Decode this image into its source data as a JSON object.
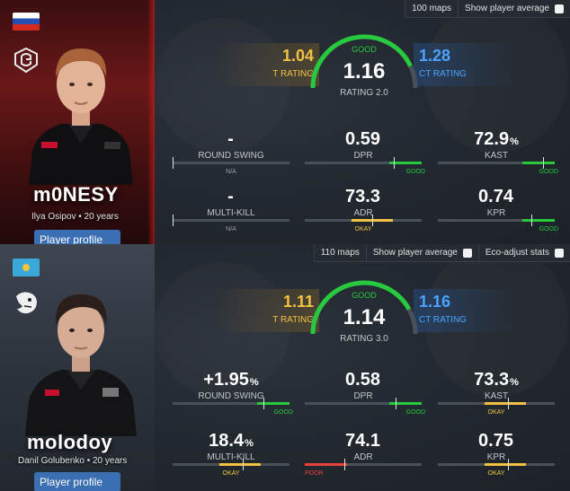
{
  "cards": [
    {
      "player": {
        "nickname": "m0NESY",
        "info": "Ilya Osipov • 20 years",
        "profile_label": "Player profile",
        "flag": "russia-flag",
        "team": "g2-esports-logo"
      },
      "toolbar": {
        "maps": "100 maps",
        "show_avg": "Show player average"
      },
      "rating": {
        "t_value": "1.04",
        "t_label": "T RATING",
        "value": "1.16",
        "label": "RATING 2.0",
        "grade": "GOOD",
        "ct_value": "1.28",
        "ct_label": "CT RATING",
        "fill": 0.86
      },
      "stats": [
        {
          "value": "-",
          "unit": "",
          "label": "ROUND SWING",
          "tag": "N/A",
          "tag_type": "na",
          "zone": "none",
          "marker": 0
        },
        {
          "value": "0.59",
          "unit": "",
          "label": "DPR",
          "tag": "GOOD",
          "tag_type": "good",
          "zone": "good",
          "marker": 0.76
        },
        {
          "value": "72.9",
          "unit": "%",
          "label": "KAST",
          "tag": "GOOD",
          "tag_type": "good",
          "zone": "good",
          "marker": 0.9
        },
        {
          "value": "-",
          "unit": "",
          "label": "MULTI-KILL",
          "tag": "N/A",
          "tag_type": "na",
          "zone": "none",
          "marker": 0
        },
        {
          "value": "73.3",
          "unit": "",
          "label": "ADR",
          "tag": "OKAY",
          "tag_type": "okay",
          "zone": "okay",
          "marker": 0.58
        },
        {
          "value": "0.74",
          "unit": "",
          "label": "KPR",
          "tag": "GOOD",
          "tag_type": "good",
          "zone": "good",
          "marker": 0.8
        }
      ]
    },
    {
      "player": {
        "nickname": "molodoy",
        "info": "Danil Golubenko • 20 years",
        "profile_label": "Player profile",
        "flag": "kazakhstan-flag",
        "team": "furia-logo"
      },
      "toolbar": {
        "maps": "110 maps",
        "show_avg": "Show player average",
        "eco": "Eco-adjust stats"
      },
      "rating": {
        "t_value": "1.11",
        "t_label": "T RATING",
        "value": "1.14",
        "label": "RATING 3.0",
        "grade": "GOOD",
        "ct_value": "1.16",
        "ct_label": "CT RATING",
        "fill": 0.84
      },
      "stats": [
        {
          "value": "+1.95",
          "unit": "%",
          "label": "ROUND SWING",
          "tag": "GOOD",
          "tag_type": "good",
          "zone": "good",
          "marker": 0.78
        },
        {
          "value": "0.58",
          "unit": "",
          "label": "DPR",
          "tag": "GOOD",
          "tag_type": "good",
          "zone": "good",
          "marker": 0.78
        },
        {
          "value": "73.3",
          "unit": "%",
          "label": "KAST",
          "tag": "OKAY",
          "tag_type": "okay",
          "zone": "okay",
          "marker": 0.6
        },
        {
          "value": "18.4",
          "unit": "%",
          "label": "MULTI-KILL",
          "tag": "OKAY",
          "tag_type": "okay",
          "zone": "okay",
          "marker": 0.6
        },
        {
          "value": "74.1",
          "unit": "",
          "label": "ADR",
          "tag": "POOR",
          "tag_type": "poor",
          "zone": "poor",
          "marker": 0.34
        },
        {
          "value": "0.75",
          "unit": "",
          "label": "KPR",
          "tag": "OKAY",
          "tag_type": "okay",
          "zone": "okay",
          "marker": 0.6
        }
      ]
    }
  ],
  "colors": {
    "good": "#27c93f",
    "okay": "#f2c245",
    "poor": "#e8403a",
    "t": "#f2c245",
    "ct": "#4aa4ff",
    "accent": "#3b6fb4"
  }
}
